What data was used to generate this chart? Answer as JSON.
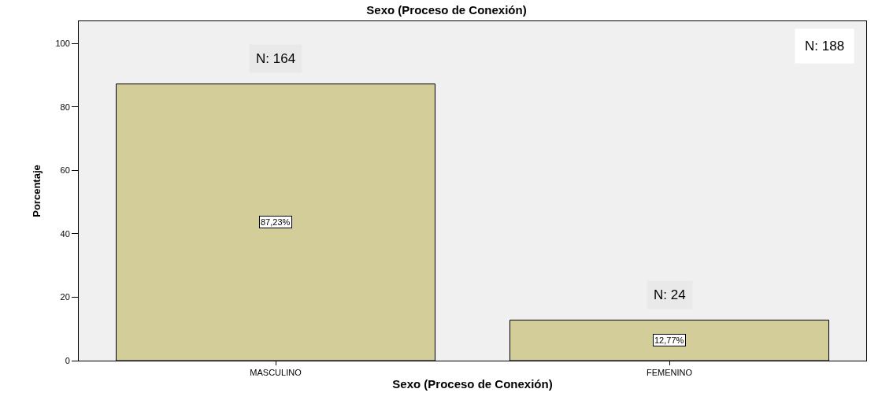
{
  "chart_data": {
    "type": "bar",
    "title": "Sexo (Proceso de Conexión)",
    "xlabel": "Sexo (Proceso de Conexión)",
    "ylabel": "Porcentaje",
    "categories": [
      "MASCULINO",
      "FEMENINO"
    ],
    "values": [
      87.23,
      12.77
    ],
    "color": "#d3ce99",
    "value_labels": [
      "87,23%",
      "12,77%"
    ],
    "ylim": [
      0,
      107
    ],
    "yticks": [
      0,
      20,
      40,
      60,
      80,
      100
    ],
    "grid": false,
    "legend": false,
    "annotations": [
      "N: 164",
      "N: 24",
      "N: 188"
    ]
  }
}
